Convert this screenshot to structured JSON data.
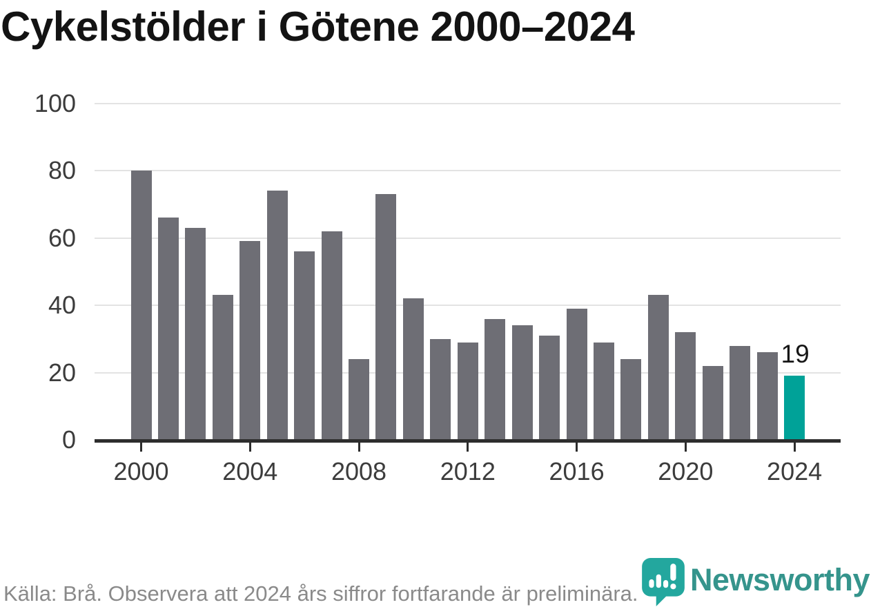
{
  "title": "Cykelstölder i Götene 2000–2024",
  "chart_data": {
    "type": "bar",
    "title": "Cykelstölder i Götene 2000–2024",
    "categories": [
      2000,
      2001,
      2002,
      2003,
      2004,
      2005,
      2006,
      2007,
      2008,
      2009,
      2010,
      2011,
      2012,
      2013,
      2014,
      2015,
      2016,
      2017,
      2018,
      2019,
      2020,
      2021,
      2022,
      2023,
      2024
    ],
    "values": [
      80,
      66,
      63,
      43,
      59,
      74,
      56,
      62,
      24,
      73,
      42,
      30,
      29,
      36,
      34,
      31,
      39,
      29,
      24,
      43,
      32,
      22,
      28,
      26,
      19
    ],
    "xlabel": "",
    "ylabel": "",
    "ylim": [
      0,
      100
    ],
    "yticks": [
      0,
      20,
      40,
      60,
      80,
      100
    ],
    "xticks": [
      2000,
      2004,
      2008,
      2012,
      2016,
      2020,
      2024
    ],
    "grid": true,
    "legend": false,
    "highlight_index": 24,
    "value_label": {
      "index": 24,
      "text": "19"
    },
    "colors": {
      "bar": "#6e6e75",
      "highlight": "#00a298"
    }
  },
  "footer": {
    "source_text": "Källa: Brå. Observera att 2024 års siffror fortfarande är preliminära.",
    "brand": "Newsworthy",
    "brand_icon_color": "#23a79e",
    "brand_text_color": "#35948c"
  }
}
